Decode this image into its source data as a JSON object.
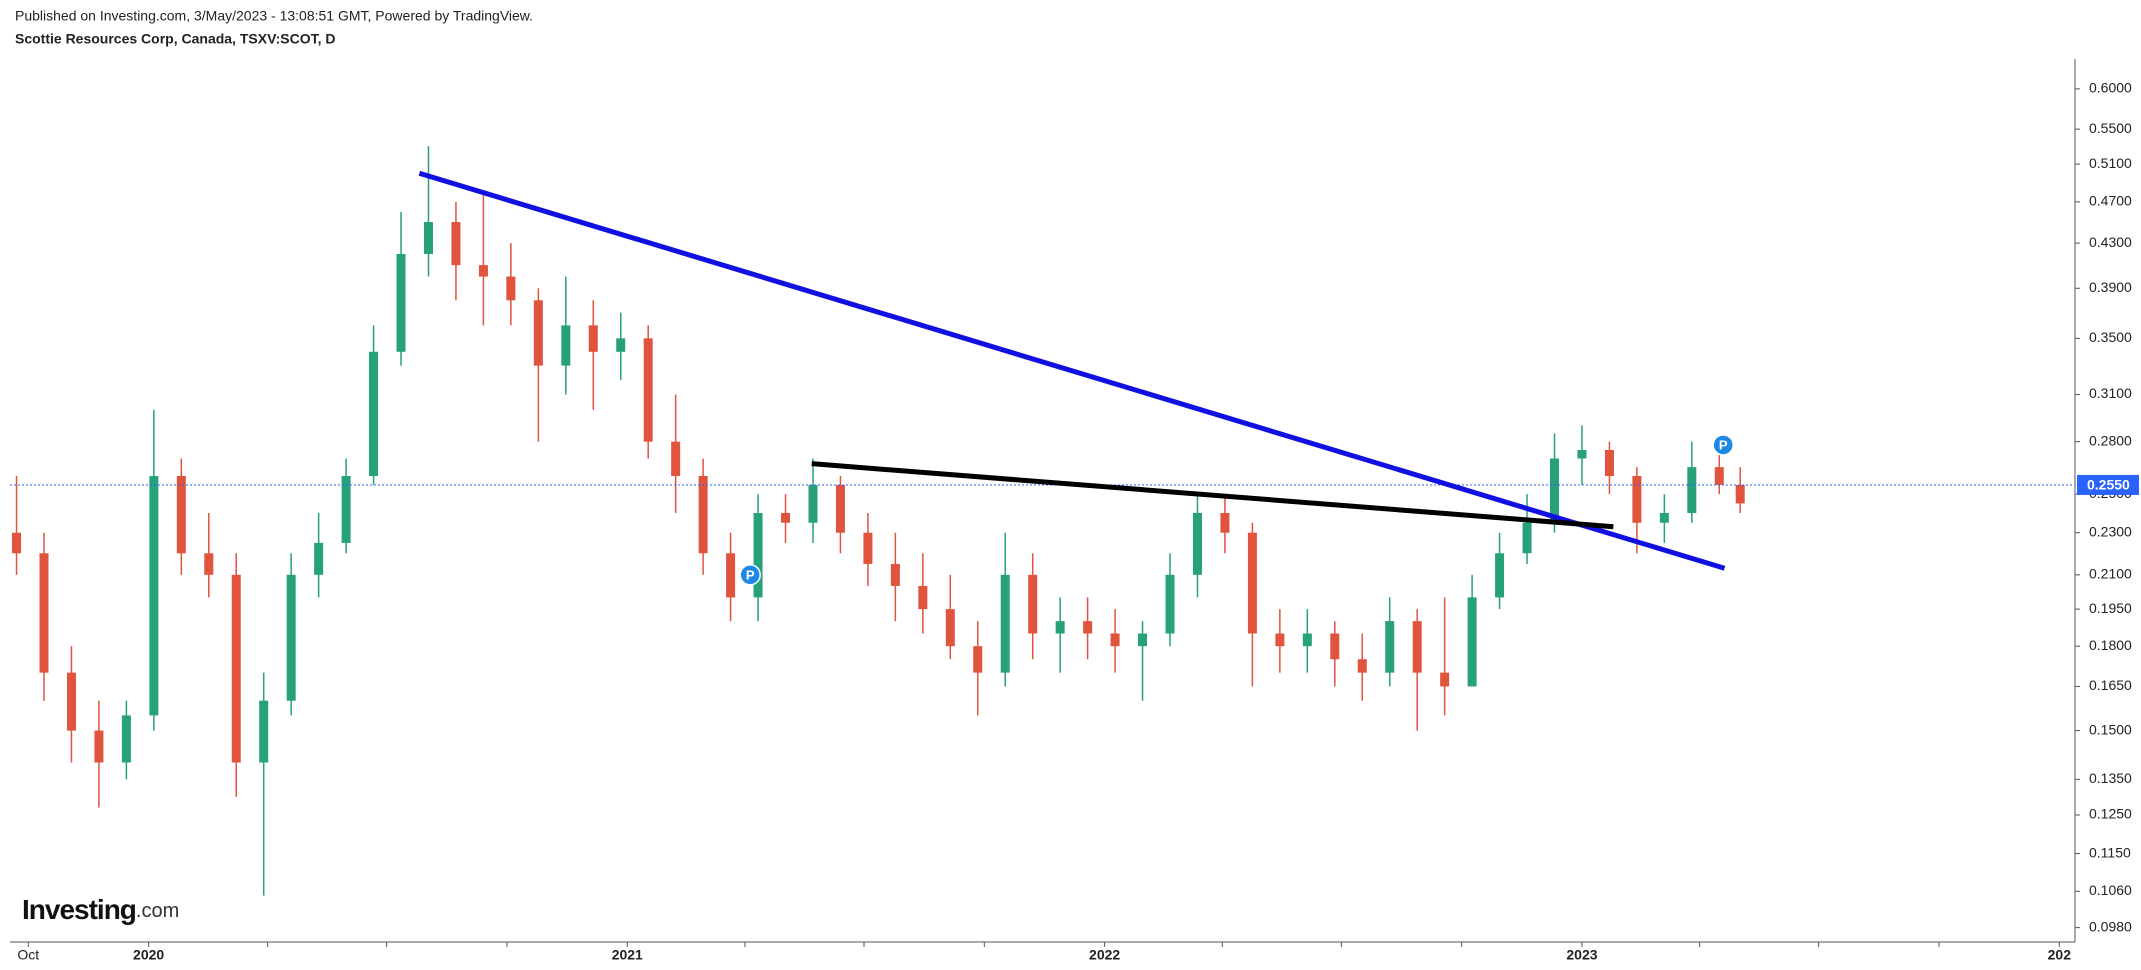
{
  "chart_data": {
    "type": "candlestick",
    "header": "Published on Investing.com, 3/May/2023 - 13:08:51 GMT, Powered by TradingView.",
    "title": "Scottie Resources Corp, Canada, TSXV:SCOT, D",
    "logo": {
      "name": "Investing",
      "suffix": ".com"
    },
    "log_scale": true,
    "grid": false,
    "up_color": "#26a17b",
    "down_color": "#e0533c",
    "x": [
      "2019-09-22",
      "2019-10-13",
      "2019-11-03",
      "2019-11-24",
      "2019-12-15",
      "2020-01-05",
      "2020-01-26",
      "2020-02-16",
      "2020-03-08",
      "2020-03-29",
      "2020-04-19",
      "2020-05-10",
      "2020-05-31",
      "2020-06-21",
      "2020-07-12",
      "2020-08-02",
      "2020-08-23",
      "2020-09-13",
      "2020-10-04",
      "2020-10-25",
      "2020-11-15",
      "2020-12-06",
      "2020-12-27",
      "2021-01-17",
      "2021-02-07",
      "2021-02-28",
      "2021-03-21",
      "2021-04-11",
      "2021-05-02",
      "2021-05-23",
      "2021-06-13",
      "2021-07-04",
      "2021-07-25",
      "2021-08-15",
      "2021-09-05",
      "2021-09-26",
      "2021-10-17",
      "2021-11-07",
      "2021-11-28",
      "2021-12-19",
      "2022-01-09",
      "2022-01-30",
      "2022-02-20",
      "2022-03-13",
      "2022-04-03",
      "2022-04-24",
      "2022-05-15",
      "2022-06-05",
      "2022-06-26",
      "2022-07-17",
      "2022-08-07",
      "2022-08-28",
      "2022-09-18",
      "2022-10-09",
      "2022-10-30",
      "2022-11-20",
      "2022-12-11",
      "2023-01-01",
      "2023-01-22",
      "2023-02-12",
      "2023-03-05",
      "2023-03-26",
      "2023-04-16",
      "2023-05-02"
    ],
    "open": [
      0.23,
      0.22,
      0.17,
      0.15,
      0.14,
      0.155,
      0.26,
      0.22,
      0.21,
      0.14,
      0.16,
      0.21,
      0.225,
      0.26,
      0.34,
      0.42,
      0.45,
      0.41,
      0.4,
      0.38,
      0.33,
      0.36,
      0.34,
      0.35,
      0.28,
      0.26,
      0.22,
      0.2,
      0.24,
      0.235,
      0.255,
      0.23,
      0.215,
      0.205,
      0.195,
      0.18,
      0.17,
      0.21,
      0.185,
      0.19,
      0.185,
      0.18,
      0.185,
      0.21,
      0.24,
      0.23,
      0.185,
      0.18,
      0.185,
      0.175,
      0.17,
      0.19,
      0.17,
      0.165,
      0.2,
      0.22,
      0.235,
      0.27,
      0.275,
      0.26,
      0.235,
      0.24,
      0.265,
      0.255
    ],
    "high": [
      0.26,
      0.23,
      0.18,
      0.16,
      0.16,
      0.3,
      0.27,
      0.24,
      0.22,
      0.17,
      0.22,
      0.24,
      0.27,
      0.36,
      0.46,
      0.53,
      0.47,
      0.48,
      0.43,
      0.39,
      0.4,
      0.38,
      0.37,
      0.36,
      0.31,
      0.27,
      0.23,
      0.25,
      0.25,
      0.27,
      0.26,
      0.24,
      0.23,
      0.22,
      0.21,
      0.19,
      0.23,
      0.22,
      0.2,
      0.2,
      0.195,
      0.19,
      0.22,
      0.25,
      0.25,
      0.235,
      0.195,
      0.195,
      0.19,
      0.185,
      0.2,
      0.195,
      0.2,
      0.21,
      0.23,
      0.25,
      0.285,
      0.29,
      0.28,
      0.265,
      0.25,
      0.28,
      0.28,
      0.265
    ],
    "low": [
      0.21,
      0.16,
      0.14,
      0.127,
      0.135,
      0.15,
      0.21,
      0.2,
      0.13,
      0.105,
      0.155,
      0.2,
      0.22,
      0.255,
      0.33,
      0.4,
      0.38,
      0.36,
      0.36,
      0.28,
      0.31,
      0.3,
      0.32,
      0.27,
      0.24,
      0.21,
      0.19,
      0.19,
      0.225,
      0.225,
      0.22,
      0.205,
      0.19,
      0.185,
      0.175,
      0.155,
      0.165,
      0.175,
      0.17,
      0.175,
      0.17,
      0.16,
      0.18,
      0.2,
      0.22,
      0.165,
      0.17,
      0.17,
      0.165,
      0.16,
      0.165,
      0.15,
      0.155,
      0.165,
      0.195,
      0.215,
      0.23,
      0.255,
      0.25,
      0.22,
      0.225,
      0.235,
      0.25,
      0.24
    ],
    "close": [
      0.22,
      0.17,
      0.15,
      0.14,
      0.155,
      0.26,
      0.22,
      0.21,
      0.14,
      0.16,
      0.21,
      0.225,
      0.26,
      0.34,
      0.42,
      0.45,
      0.41,
      0.4,
      0.38,
      0.33,
      0.36,
      0.34,
      0.35,
      0.28,
      0.26,
      0.22,
      0.2,
      0.24,
      0.235,
      0.255,
      0.23,
      0.215,
      0.205,
      0.195,
      0.18,
      0.17,
      0.21,
      0.185,
      0.19,
      0.185,
      0.18,
      0.185,
      0.21,
      0.24,
      0.23,
      0.185,
      0.18,
      0.185,
      0.175,
      0.17,
      0.19,
      0.17,
      0.165,
      0.2,
      0.22,
      0.235,
      0.27,
      0.275,
      0.26,
      0.235,
      0.24,
      0.265,
      0.255,
      0.245
    ],
    "trendlines": [
      {
        "color": "#1010e0",
        "x": [
          "2020-07-26",
          "2023-04-20"
        ],
        "y": [
          0.5,
          0.213
        ]
      },
      {
        "color": "#000000",
        "x": [
          "2021-05-22",
          "2023-01-25"
        ],
        "y": [
          0.267,
          0.233
        ]
      }
    ],
    "markers": [
      {
        "x": "2021-04-05",
        "y": 0.21,
        "label": "P"
      },
      {
        "x": "2023-04-19",
        "y": 0.278,
        "label": "P"
      }
    ],
    "last_price": {
      "value": 0.255,
      "label": "0.2550",
      "color": "#2962ff"
    },
    "xlim": [
      "2019-09-17",
      "2024-01-13"
    ],
    "xticks": [
      {
        "value": "2019-10-01",
        "label": "Oct"
      },
      {
        "value": "2020-01-01",
        "label": "2020"
      },
      {
        "value": "2021-01-01",
        "label": "2021"
      },
      {
        "value": "2022-01-01",
        "label": "2022"
      },
      {
        "value": "2023-01-01",
        "label": "2023"
      },
      {
        "value": "2024-01-01",
        "label": "202"
      }
    ],
    "xminorticks": [
      "2020-04-01",
      "2020-07-01",
      "2020-10-01",
      "2021-04-01",
      "2021-07-01",
      "2021-10-01",
      "2022-04-01",
      "2022-07-01",
      "2022-10-01",
      "2023-04-01",
      "2023-07-01",
      "2023-10-01"
    ],
    "ylim": [
      0.095,
      0.64
    ],
    "yticks": [
      {
        "value": 0.098,
        "label": "0.0980"
      },
      {
        "value": 0.106,
        "label": "0.1060"
      },
      {
        "value": 0.115,
        "label": "0.1150"
      },
      {
        "value": 0.125,
        "label": "0.1250"
      },
      {
        "value": 0.135,
        "label": "0.1350"
      },
      {
        "value": 0.15,
        "label": "0.1500"
      },
      {
        "value": 0.165,
        "label": "0.1650"
      },
      {
        "value": 0.18,
        "label": "0.1800"
      },
      {
        "value": 0.195,
        "label": "0.1950"
      },
      {
        "value": 0.21,
        "label": "0.2100"
      },
      {
        "value": 0.23,
        "label": "0.2300"
      },
      {
        "value": 0.25,
        "label": "0.2500"
      },
      {
        "value": 0.28,
        "label": "0.2800"
      },
      {
        "value": 0.31,
        "label": "0.3100"
      },
      {
        "value": 0.35,
        "label": "0.3500"
      },
      {
        "value": 0.39,
        "label": "0.3900"
      },
      {
        "value": 0.43,
        "label": "0.4300"
      },
      {
        "value": 0.47,
        "label": "0.4700"
      },
      {
        "value": 0.51,
        "label": "0.5100"
      },
      {
        "value": 0.55,
        "label": "0.5500"
      },
      {
        "value": 0.6,
        "label": "0.6000"
      }
    ]
  }
}
